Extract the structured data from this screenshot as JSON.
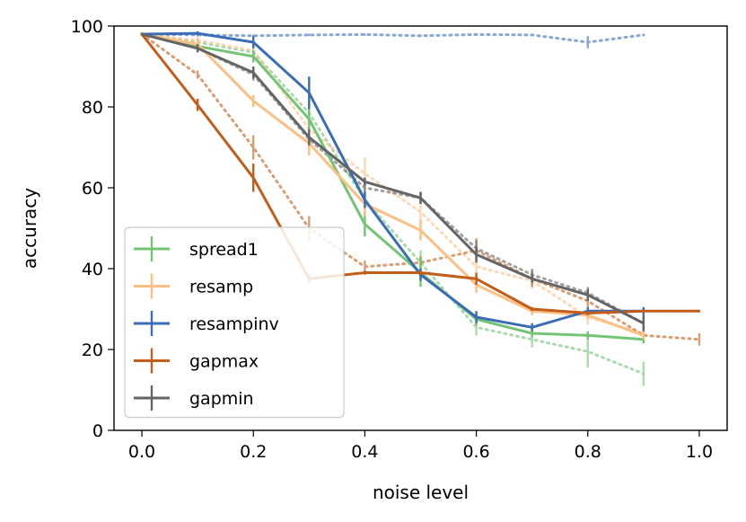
{
  "chart_data": {
    "type": "line",
    "title": "",
    "xlabel": "noise level",
    "ylabel": "accuracy",
    "xlim": [
      -0.05,
      1.05
    ],
    "ylim": [
      0,
      100
    ],
    "xticks": [
      0.0,
      0.2,
      0.4,
      0.6,
      0.8,
      1.0
    ],
    "xtick_labels": [
      "0.0",
      "0.2",
      "0.4",
      "0.6",
      "0.8",
      "1.0"
    ],
    "yticks": [
      0,
      20,
      40,
      60,
      80,
      100
    ],
    "ytick_labels": [
      "0",
      "20",
      "40",
      "60",
      "80",
      "100"
    ],
    "legend_position": "lower-left",
    "grid": false,
    "series": [
      {
        "name": "spread1",
        "color": "#74c476",
        "style": "solid",
        "x": [
          0.0,
          0.1,
          0.2,
          0.3,
          0.4,
          0.5,
          0.6,
          0.7,
          0.8,
          0.9
        ],
        "y": [
          98,
          95,
          92.5,
          77,
          51,
          39,
          27.5,
          24,
          23.5,
          22.5
        ],
        "err": [
          0.5,
          1,
          1.5,
          3,
          3,
          3.5,
          1.5,
          1,
          1,
          1
        ]
      },
      {
        "name": "resamp",
        "color": "#fdbf84",
        "style": "solid",
        "x": [
          0.0,
          0.1,
          0.2,
          0.3,
          0.4,
          0.5,
          0.6,
          0.7,
          0.8,
          0.9
        ],
        "y": [
          98,
          95.5,
          81.5,
          71,
          56,
          49.5,
          36,
          29.5,
          28.5,
          23.5
        ],
        "err": [
          0.5,
          1,
          1.5,
          3,
          3,
          2.5,
          2,
          1,
          1,
          1
        ]
      },
      {
        "name": "resampinv",
        "color": "#3a6db5",
        "style": "solid",
        "x": [
          0.0,
          0.1,
          0.2,
          0.3,
          0.4,
          0.5,
          0.6,
          0.7,
          0.8,
          0.9
        ],
        "y": [
          98,
          98.2,
          96,
          83.5,
          57,
          38.5,
          28,
          25.5,
          29.5,
          29.5
        ],
        "err": [
          0.3,
          0.5,
          1.5,
          4,
          2,
          1.5,
          1.5,
          1,
          1,
          1
        ]
      },
      {
        "name": "gapmax",
        "color": "#c25e1a",
        "style": "solid",
        "x": [
          0.0,
          0.1,
          0.2,
          0.3,
          0.4,
          0.5,
          0.6,
          0.7,
          0.8,
          0.9,
          1.0
        ],
        "y": [
          98,
          80.5,
          62.5,
          37.5,
          39,
          39,
          37.5,
          30,
          29,
          29.5,
          29.5
        ],
        "err": [
          0.3,
          1.5,
          3.5,
          1,
          0.5,
          0.5,
          1.5,
          0.5,
          0.5,
          0.3,
          0.3
        ]
      },
      {
        "name": "gapmin",
        "color": "#656565",
        "style": "solid",
        "x": [
          0.0,
          0.1,
          0.2,
          0.3,
          0.4,
          0.5,
          0.6,
          0.7,
          0.8,
          0.9
        ],
        "y": [
          98,
          94.5,
          88.5,
          72.5,
          61.5,
          57.5,
          43.5,
          37.5,
          33.5,
          26.5
        ],
        "err": [
          0.3,
          1,
          1.5,
          2,
          1,
          1.5,
          2,
          1,
          1.5,
          2
        ]
      },
      {
        "name": "resampinv (dotted)",
        "color": "#3a6db5",
        "style": "dotted",
        "x": [
          0.0,
          0.1,
          0.2,
          0.3,
          0.4,
          0.5,
          0.6,
          0.7,
          0.8,
          0.9
        ],
        "y": [
          98,
          97.8,
          97.6,
          97.8,
          97.9,
          97.6,
          97.9,
          97.8,
          96,
          97.8
        ],
        "err": [
          0.2,
          0.3,
          0.3,
          0.3,
          0.3,
          0.3,
          0.3,
          0.3,
          1.5,
          0.3
        ]
      },
      {
        "name": "spread1 (dotted)",
        "color": "#74c476",
        "style": "dotted",
        "x": [
          0.0,
          0.1,
          0.2,
          0.3,
          0.4,
          0.5,
          0.6,
          0.7,
          0.8,
          0.9
        ],
        "y": [
          98,
          96,
          93.5,
          78.5,
          57,
          41.5,
          25.5,
          22.5,
          19.5,
          14
        ],
        "err": [
          0.5,
          1,
          1.5,
          3,
          3,
          3,
          2,
          2,
          4,
          3
        ]
      },
      {
        "name": "resamp (dotted)",
        "color": "#fdbf84",
        "style": "dotted",
        "x": [
          0.0,
          0.1,
          0.2,
          0.3,
          0.4,
          0.5,
          0.6,
          0.7,
          0.8,
          0.9
        ],
        "y": [
          98,
          96.5,
          94,
          74.5,
          63.5,
          54,
          40.5,
          37,
          28,
          24
        ],
        "err": [
          0.5,
          1,
          1.5,
          3,
          4,
          4,
          3,
          2,
          2,
          1
        ]
      },
      {
        "name": "gapmax (dotted)",
        "color": "#c25e1a",
        "style": "dotted",
        "x": [
          0.0,
          0.1,
          0.2,
          0.3,
          0.4,
          0.5,
          0.6,
          0.7,
          0.8,
          0.9,
          1.0
        ],
        "y": [
          98,
          88,
          70,
          50,
          40.5,
          41.5,
          44.5,
          37.5,
          32,
          23.5,
          22.5
        ],
        "err": [
          0.3,
          1,
          3,
          3,
          1.5,
          1.5,
          3,
          2,
          1.5,
          1.5,
          1.5
        ]
      },
      {
        "name": "gapmin (dotted)",
        "color": "#656565",
        "style": "dotted",
        "x": [
          0.0,
          0.1,
          0.2,
          0.3,
          0.4,
          0.5,
          0.6,
          0.7,
          0.8,
          0.9
        ],
        "y": [
          98,
          94.5,
          88,
          72,
          60,
          57.5,
          45,
          38.5,
          34,
          26.5
        ],
        "err": [
          0.3,
          1,
          1.5,
          2,
          1.5,
          1.5,
          2,
          1.5,
          1.5,
          2
        ]
      }
    ],
    "legend": [
      "spread1",
      "resamp",
      "resampinv",
      "gapmax",
      "gapmin"
    ]
  }
}
